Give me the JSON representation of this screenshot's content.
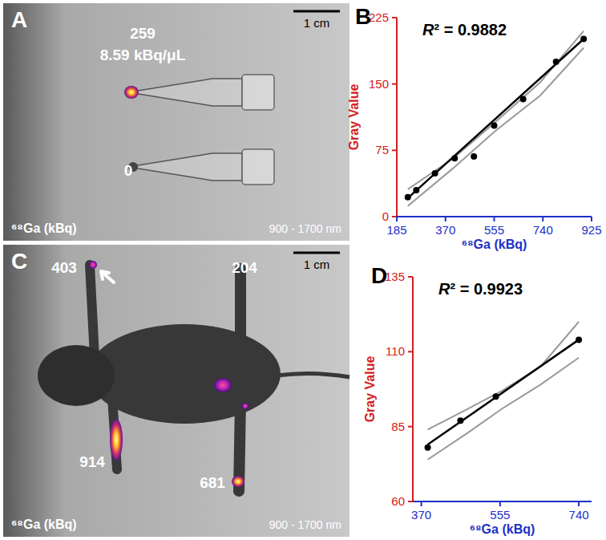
{
  "chart_data": [
    {
      "type": "scatter",
      "panel": "B",
      "annotation": "R² = 0.9882",
      "x_label": "⁶⁸Ga (kBq)",
      "y_label": "Gray Value",
      "x": [
        227,
        259,
        330,
        405,
        478,
        555,
        665,
        790,
        895
      ],
      "values": [
        22,
        30,
        49,
        66,
        68,
        103,
        133,
        175,
        201
      ],
      "color": "#000000",
      "marker": "circle",
      "xlim": [
        185,
        925
      ],
      "xticks": [
        185,
        370,
        555,
        740,
        925
      ],
      "ylim": [
        0,
        225
      ],
      "yticks": [
        0,
        75,
        150,
        225
      ],
      "grid": false,
      "fit": {
        "x": [
          227,
          895
        ],
        "values": [
          21,
          201
        ],
        "color": "#000000"
      },
      "band_upper": {
        "x": [
          227,
          400,
          560,
          730,
          895
        ],
        "values": [
          31,
          66,
          107,
          152,
          210
        ],
        "color": "#999999"
      },
      "band_lower": {
        "x": [
          227,
          400,
          560,
          730,
          895
        ],
        "values": [
          12,
          55,
          97,
          137,
          191
        ],
        "color": "#999999"
      }
    },
    {
      "type": "scatter",
      "panel": "D",
      "annotation": "R² = 0.9923",
      "x_label": "⁶⁸Ga (kBq)",
      "y_label": "Gray Value",
      "x": [
        385,
        462,
        545,
        740
      ],
      "values": [
        78,
        87,
        95,
        114
      ],
      "color": "#000000",
      "marker": "circle",
      "xlim": [
        350,
        770
      ],
      "xticks": [
        370,
        555,
        740
      ],
      "ylim": [
        60,
        135
      ],
      "yticks": [
        60,
        85,
        110,
        135
      ],
      "grid": false,
      "fit": {
        "x": [
          385,
          740
        ],
        "values": [
          79,
          114
        ],
        "color": "#000000"
      },
      "band_upper": {
        "x": [
          385,
          480,
          560,
          650,
          740
        ],
        "values": [
          84,
          91,
          97,
          105,
          120
        ],
        "color": "#999999"
      },
      "band_lower": {
        "x": [
          385,
          480,
          560,
          650,
          740
        ],
        "values": [
          74,
          83,
          91,
          99,
          108
        ],
        "color": "#999999"
      }
    }
  ],
  "images": [
    {
      "panel": "A",
      "scale_bar": "1 cm",
      "caption": "⁶⁸Ga (kBq)",
      "wavelength": "900 - 1700 nm",
      "labels": [
        "259",
        "8.59 kBq/μL",
        "0"
      ]
    },
    {
      "panel": "C",
      "scale_bar": "1 cm",
      "caption": "⁶⁸Ga (kBq)",
      "wavelength": "900 - 1700 nm",
      "labels": [
        "403",
        "204",
        "914",
        "681"
      ]
    }
  ]
}
